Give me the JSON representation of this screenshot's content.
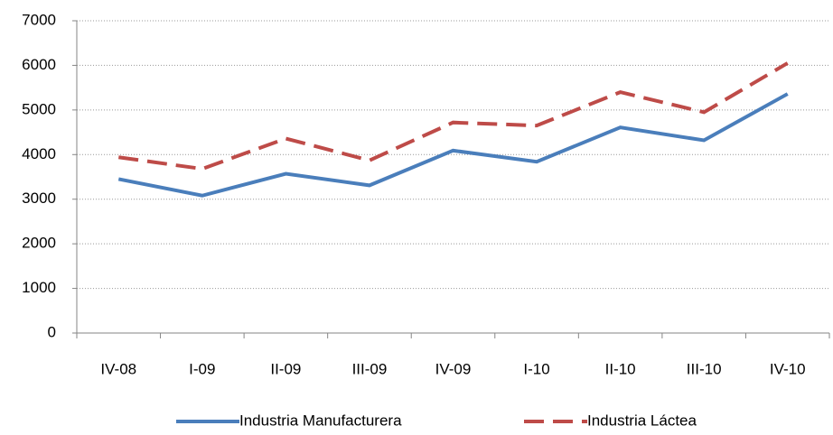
{
  "chart_data": {
    "type": "line",
    "categories": [
      "IV-08",
      "I-09",
      "II-09",
      "III-09",
      "IV-09",
      "I-10",
      "II-10",
      "III-10",
      "IV-10"
    ],
    "series": [
      {
        "name": "Industria Manufacturera",
        "color": "#4a7ebb",
        "dash": false,
        "values": [
          3450,
          3080,
          3570,
          3310,
          4090,
          3840,
          4610,
          4320,
          5360
        ]
      },
      {
        "name": "Industria Láctea",
        "color": "#be4b48",
        "dash": true,
        "values": [
          3940,
          3680,
          4360,
          3870,
          4720,
          4650,
          5400,
          4950,
          6050
        ]
      }
    ],
    "ylim": [
      0,
      7000
    ],
    "yticks": [
      0,
      1000,
      2000,
      3000,
      4000,
      5000,
      6000,
      7000
    ],
    "grid": true,
    "legend": "bottom"
  }
}
